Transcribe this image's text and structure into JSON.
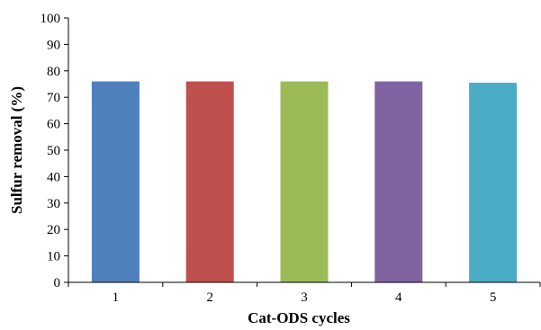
{
  "chart_data": {
    "type": "bar",
    "title": "",
    "xlabel": "Cat-ODS cycles",
    "ylabel": "Sulfur removal (%)",
    "categories": [
      "1",
      "2",
      "3",
      "4",
      "5"
    ],
    "values": [
      76,
      76,
      76,
      76,
      75.5
    ],
    "ylim": [
      0,
      100
    ],
    "yticks": [
      0,
      10,
      20,
      30,
      40,
      50,
      60,
      70,
      80,
      90,
      100
    ],
    "grid": false,
    "legend": "none",
    "bar_colors": [
      "#4f81bd",
      "#c0504d",
      "#9bbb59",
      "#8064a2",
      "#4bacc6"
    ],
    "axis_color": "#000000"
  }
}
